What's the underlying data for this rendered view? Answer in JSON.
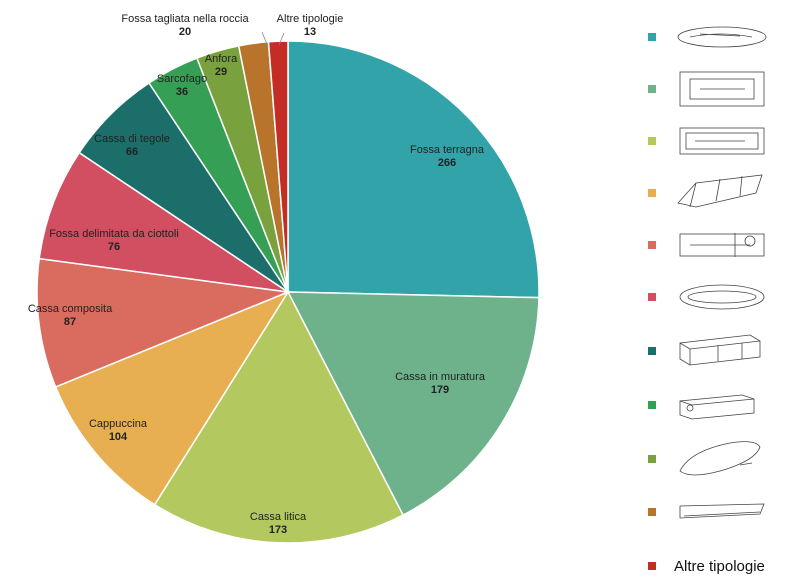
{
  "chart_data": {
    "type": "pie",
    "categories": [
      "Fossa terragna",
      "Cassa in muratura",
      "Cassa litica",
      "Cappuccina",
      "Cassa composita",
      "Fossa delimitata da ciottoli",
      "Cassa di tegole",
      "Sarcofago",
      "Anfora",
      "Fossa tagliata nella roccia",
      "Altre tipologie"
    ],
    "values": [
      266,
      179,
      173,
      104,
      87,
      76,
      66,
      36,
      29,
      20,
      13
    ],
    "colors": [
      "#33a3aa",
      "#6db28a",
      "#b3c95f",
      "#e8ae52",
      "#da6c5f",
      "#d14f61",
      "#1b6e6a",
      "#35a055",
      "#79a23e",
      "#b8742b",
      "#c42d26"
    ],
    "legend_text": [
      "",
      "",
      "",
      "",
      "",
      "",
      "",
      "",
      "",
      "",
      "Altre tipologie"
    ],
    "title": "",
    "legend_position": "right",
    "legend_icons": [
      "burial-sketch",
      "burial-sketch",
      "burial-sketch",
      "burial-sketch",
      "burial-sketch",
      "burial-sketch",
      "burial-sketch",
      "burial-sketch",
      "burial-sketch",
      "burial-sketch",
      "none"
    ]
  }
}
